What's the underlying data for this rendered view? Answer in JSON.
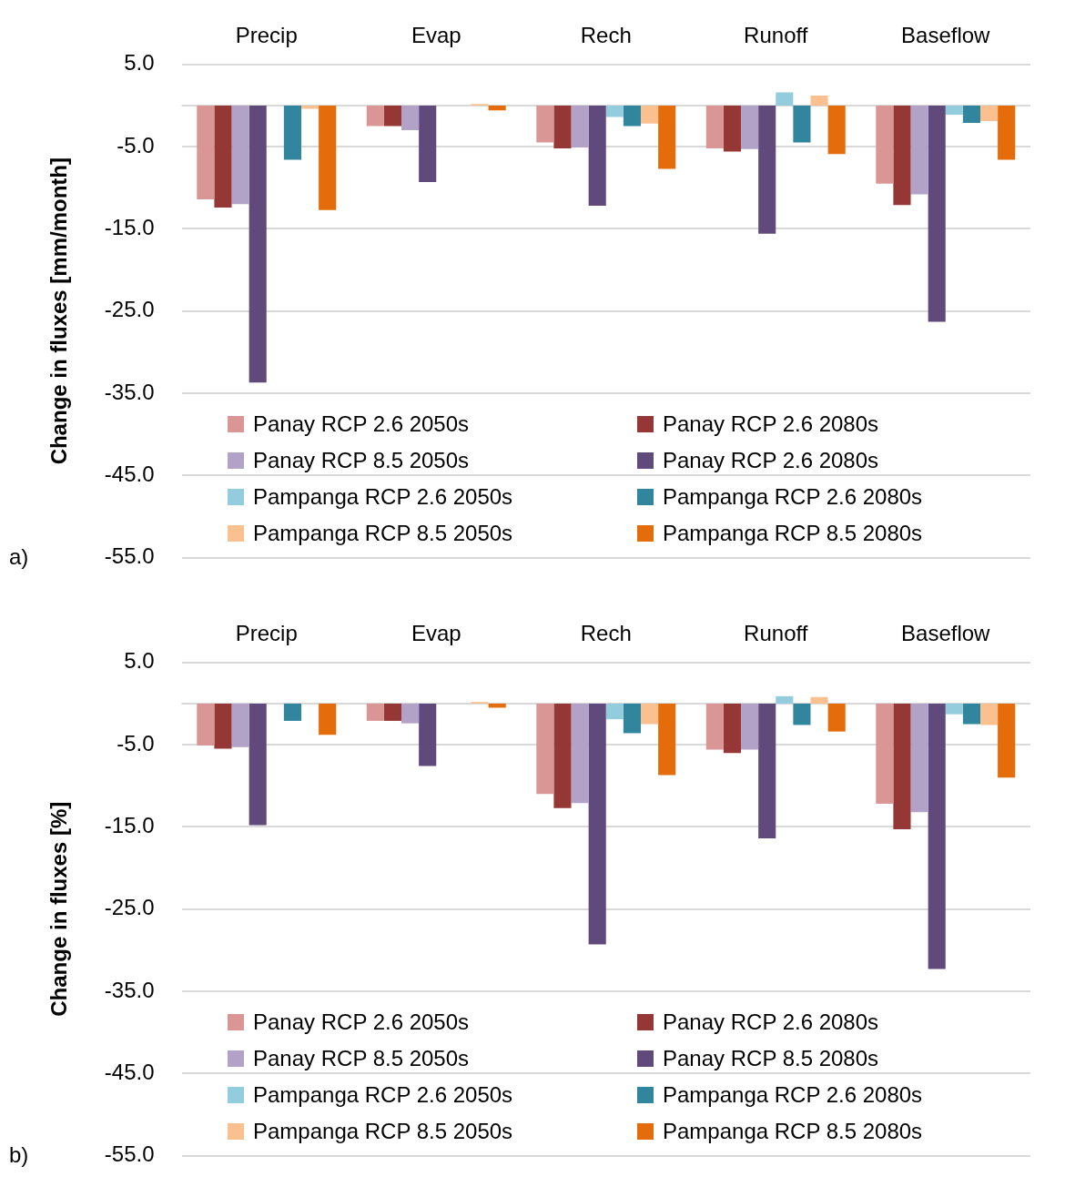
{
  "chart_data": [
    {
      "type": "bar",
      "categories": [
        "Precip",
        "Evap",
        "Rech",
        "Runoff",
        "Baseflow"
      ],
      "ylabel": "Change in fluxes [mm/month]",
      "ylim": [
        -55,
        5
      ],
      "yticks": [
        {
          "value": 5,
          "label": "5.0"
        },
        {
          "value": -5,
          "label": "-5.0"
        },
        {
          "value": -15,
          "label": "-15.0"
        },
        {
          "value": -25,
          "label": "-25.0"
        },
        {
          "value": -35,
          "label": "-35.0"
        },
        {
          "value": -45,
          "label": "-45.0"
        },
        {
          "value": -55,
          "label": "-55.0"
        }
      ],
      "grid": "y",
      "legend": "bottom",
      "annotations": [
        "a)"
      ],
      "ref_lines": [
        {
          "axis": "y",
          "value": 0,
          "color": "#d9d9d9"
        }
      ],
      "series": [
        {
          "name": "Panay RCP 2.6 2050s",
          "color": "#da9694",
          "values": [
            -11.4,
            -2.5,
            -4.5,
            -5.2,
            -9.5
          ]
        },
        {
          "name": "Panay RCP 2.6 2080s",
          "color": "#953735",
          "values": [
            -12.4,
            -2.5,
            -5.2,
            -5.6,
            -12.1
          ]
        },
        {
          "name": "Panay RCP 8.5 2050s",
          "color": "#b3a2c7",
          "values": [
            -12.0,
            -3.0,
            -5.1,
            -5.3,
            -10.8
          ]
        },
        {
          "name": "Panay RCP 2.6 2080s",
          "color": "#604a7b",
          "values": [
            -33.7,
            -9.3,
            -12.2,
            -15.6,
            -26.3
          ]
        },
        {
          "name": "Pampanga RCP 2.6 2050s",
          "color": "#93cddd",
          "values": [
            0,
            0,
            -1.4,
            1.6,
            -1.1
          ]
        },
        {
          "name": "Pampanga RCP 2.6 2080s",
          "color": "#31859c",
          "values": [
            -6.6,
            0,
            -2.5,
            -4.5,
            -2.1
          ]
        },
        {
          "name": "Pampanga RCP 8.5 2050s",
          "color": "#fac090",
          "values": [
            -0.4,
            0.2,
            -2.2,
            1.2,
            -1.9
          ]
        },
        {
          "name": "Pampanga RCP 8.5 2080s",
          "color": "#e46c0a",
          "values": [
            -12.7,
            -0.6,
            -7.7,
            -5.9,
            -6.6
          ]
        }
      ]
    },
    {
      "type": "bar",
      "categories": [
        "Precip",
        "Evap",
        "Rech",
        "Runoff",
        "Baseflow"
      ],
      "ylabel": "Change in fluxes [%]",
      "ylim": [
        -55,
        5
      ],
      "yticks": [
        {
          "value": 5,
          "label": "5.0"
        },
        {
          "value": -5,
          "label": "-5.0"
        },
        {
          "value": -15,
          "label": "-15.0"
        },
        {
          "value": -25,
          "label": "-25.0"
        },
        {
          "value": -35,
          "label": "-35.0"
        },
        {
          "value": -45,
          "label": "-45.0"
        },
        {
          "value": -55,
          "label": "-55.0"
        }
      ],
      "grid": "y",
      "legend": "bottom",
      "annotations": [
        "b)"
      ],
      "ref_lines": [
        {
          "axis": "y",
          "value": 0,
          "color": "#d9d9d9"
        }
      ],
      "series": [
        {
          "name": "Panay RCP 2.6 2050s",
          "color": "#da9694",
          "values": [
            -5.1,
            -2.1,
            -11.0,
            -5.6,
            -12.2
          ]
        },
        {
          "name": "Panay RCP 2.6 2080s",
          "color": "#953735",
          "values": [
            -5.5,
            -2.1,
            -12.7,
            -6.0,
            -15.3
          ]
        },
        {
          "name": "Panay RCP 8.5 2050s",
          "color": "#b3a2c7",
          "values": [
            -5.3,
            -2.4,
            -12.1,
            -5.6,
            -13.2
          ]
        },
        {
          "name": "Panay RCP 8.5 2080s",
          "color": "#604a7b",
          "values": [
            -14.8,
            -7.6,
            -29.3,
            -16.4,
            -32.3
          ]
        },
        {
          "name": "Pampanga RCP 2.6 2050s",
          "color": "#93cddd",
          "values": [
            0,
            0,
            -1.9,
            0.9,
            -1.3
          ]
        },
        {
          "name": "Pampanga RCP 2.6 2080s",
          "color": "#31859c",
          "values": [
            -2.1,
            0,
            -3.6,
            -2.6,
            -2.5
          ]
        },
        {
          "name": "Pampanga RCP 8.5 2050s",
          "color": "#fac090",
          "values": [
            0,
            0.2,
            -2.5,
            0.8,
            -2.6
          ]
        },
        {
          "name": "Pampanga RCP 8.5 2080s",
          "color": "#e46c0a",
          "values": [
            -3.8,
            -0.5,
            -8.7,
            -3.4,
            -9.0
          ]
        }
      ]
    }
  ]
}
